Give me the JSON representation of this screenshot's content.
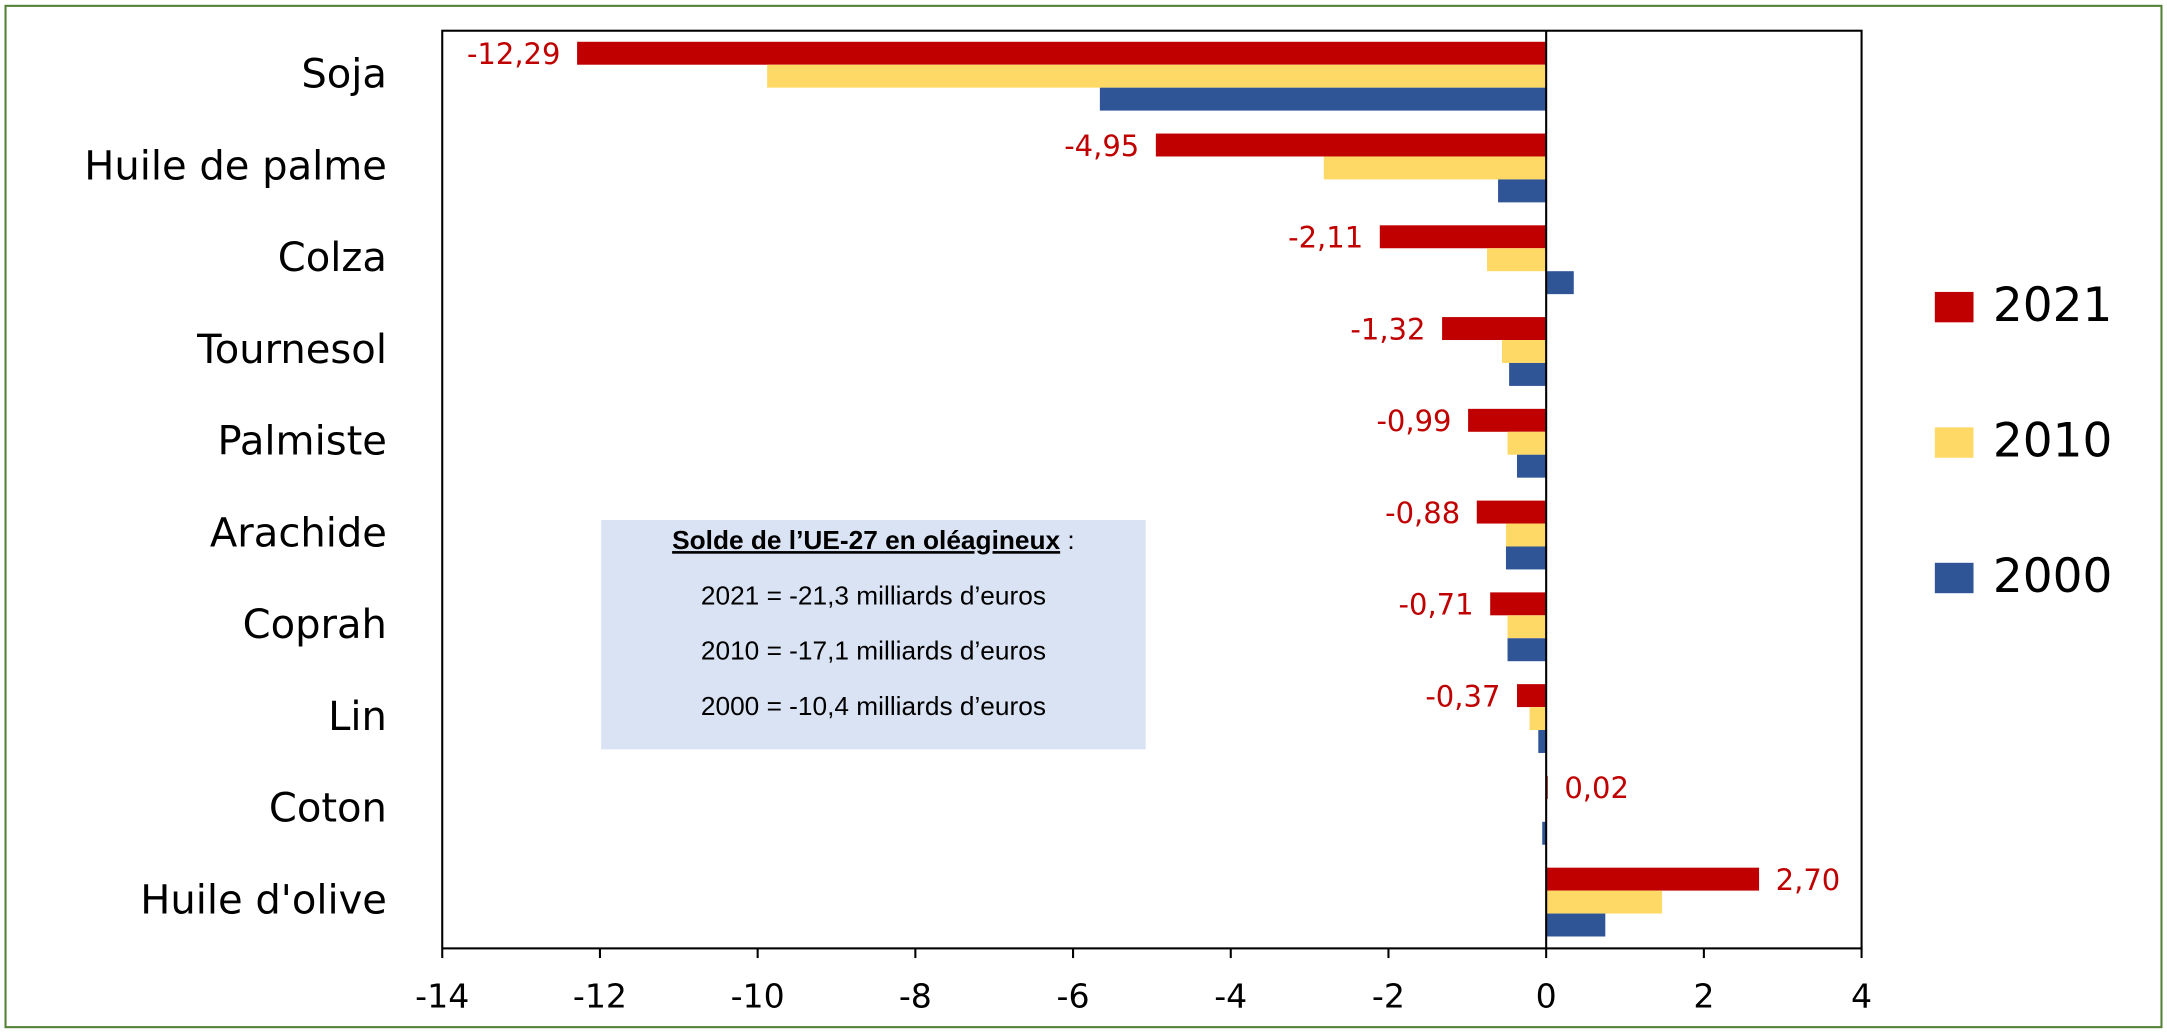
{
  "chart_data": {
    "type": "bar",
    "orientation": "horizontal",
    "categories": [
      "Soja",
      "Huile de palme",
      "Colza",
      "Tournesol",
      "Palmiste",
      "Arachide",
      "Coprah",
      "Lin",
      "Coton",
      "Huile d'olive"
    ],
    "series": [
      {
        "name": "2021",
        "color": "#c00000",
        "values": [
          -12.29,
          -4.95,
          -2.11,
          -1.32,
          -0.99,
          -0.88,
          -0.71,
          -0.37,
          0.02,
          2.7
        ],
        "value_labels": [
          "-12,29",
          "-4,95",
          "-2,11",
          "-1,32",
          "-0,99",
          "-0,88",
          "-0,71",
          "-0,37",
          "0,02",
          "2,70"
        ]
      },
      {
        "name": "2010",
        "color": "#ffd966",
        "values": [
          -9.88,
          -2.82,
          -0.75,
          -0.56,
          -0.49,
          -0.51,
          -0.49,
          -0.21,
          -0.01,
          1.47
        ]
      },
      {
        "name": "2000",
        "color": "#2f5597",
        "values": [
          -5.66,
          -0.61,
          0.35,
          -0.47,
          -0.37,
          -0.51,
          -0.49,
          -0.1,
          -0.05,
          0.75
        ]
      }
    ],
    "xlim": [
      -14,
      4
    ],
    "xticks": [
      -14,
      -12,
      -10,
      -8,
      -6,
      -4,
      -2,
      0,
      2,
      4
    ],
    "legend": "right",
    "annotation": {
      "title": "Solde de l’UE-27 en oléagineux",
      "title_suffix": " :",
      "lines": [
        "2021 = -21,3 milliards d’euros",
        "2010 = -17,1 milliards d’euros",
        "2000 = -10,4 milliards d’euros"
      ]
    }
  }
}
